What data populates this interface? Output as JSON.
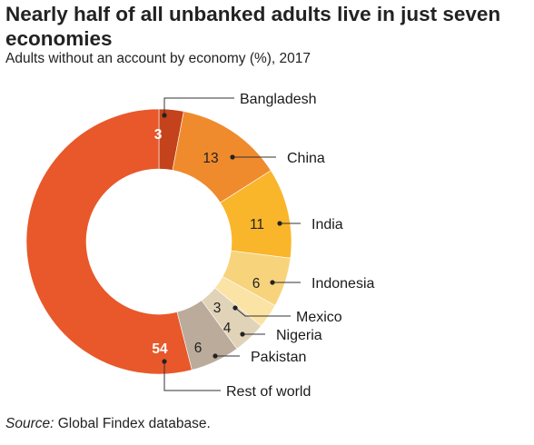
{
  "title": "Nearly half of all unbanked adults live in just seven economies",
  "subtitle": "Adults without an account by economy (%), 2017",
  "source_label": "Source:",
  "source_text": " Global Findex database.",
  "chart_data": {
    "type": "pie",
    "variant": "donut",
    "title": "Nearly half of all unbanked adults live in just seven economies",
    "subtitle": "Adults without an account by economy (%), 2017",
    "categories": [
      "Bangladesh",
      "China",
      "India",
      "Indonesia",
      "Mexico",
      "Nigeria",
      "Pakistan",
      "Rest of world"
    ],
    "values": [
      3,
      13,
      11,
      6,
      3,
      4,
      6,
      54
    ],
    "colors": [
      "#c4421c",
      "#ef8b2d",
      "#f9b62b",
      "#f7d37c",
      "#fbe3a6",
      "#e0d3b8",
      "#bbab9a",
      "#e8582a"
    ],
    "value_label_colors": [
      "#ffffff",
      "#222222",
      "#222222",
      "#222222",
      "#222222",
      "#222222",
      "#222222",
      "#ffffff"
    ],
    "legend": "none",
    "labels": "callout lines to category names"
  }
}
